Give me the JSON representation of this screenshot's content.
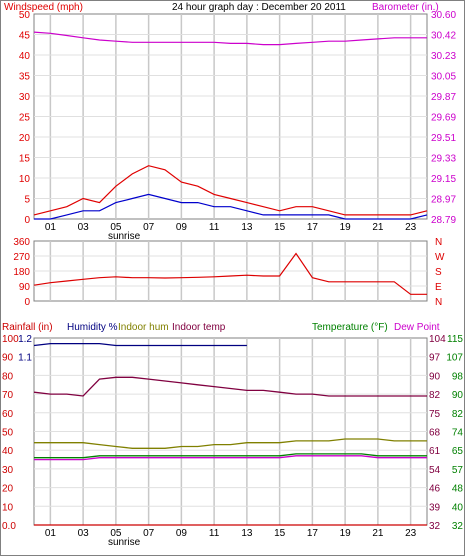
{
  "colors": {
    "wind_gust": "#e00000",
    "wind_avg": "#0000cc",
    "barometer": "#cc00cc",
    "direction": "#dd0000",
    "rain": "#cc0000",
    "humidity": "#000080",
    "indoor_hum": "#808000",
    "indoor_temp": "#800040",
    "temperature": "#008000",
    "dew_point": "#cc00cc",
    "grid": "#c8c8c8",
    "frame": "#808080"
  },
  "header": {
    "left_title": "Windspeed (mph)",
    "center_title": "24 hour graph day : December 20 2011",
    "right_title": "Barometer (in.)"
  },
  "hour_labels": [
    "01",
    "03",
    "05",
    "07",
    "09",
    "11",
    "13",
    "15",
    "17",
    "19",
    "21",
    "23"
  ],
  "sunrise_label": "sunrise",
  "chart_data": [
    {
      "type": "line",
      "title": "24 hour graph day : December 20 2011",
      "ylabel": "Windspeed (mph)",
      "y2label": "Barometer (in.)",
      "ylim": [
        0,
        50
      ],
      "y2lim": [
        28.79,
        30.6
      ],
      "y_ticks": [
        "0",
        "5",
        "10",
        "15",
        "20",
        "25",
        "30",
        "35",
        "40",
        "45",
        "50"
      ],
      "y2_ticks": [
        "28.79",
        "28.97",
        "29.15",
        "29.33",
        "29.51",
        "29.69",
        "29.87",
        "30.05",
        "30.23",
        "30.42",
        "30.60"
      ],
      "x": [
        0,
        1,
        2,
        3,
        4,
        5,
        6,
        7,
        8,
        9,
        10,
        11,
        12,
        13,
        14,
        15,
        16,
        17,
        18,
        19,
        20,
        21,
        22,
        23,
        24
      ],
      "series": [
        {
          "name": "Windspeed (mph)",
          "key": "wind_gust",
          "values": [
            1,
            2,
            3,
            5,
            4,
            8,
            11,
            13,
            12,
            9,
            8,
            6,
            5,
            4,
            3,
            2,
            3,
            3,
            2,
            1,
            1,
            1,
            1,
            1,
            2
          ]
        },
        {
          "name": "",
          "key": "wind_avg",
          "values": [
            0,
            0,
            1,
            2,
            2,
            4,
            5,
            6,
            5,
            4,
            4,
            3,
            3,
            2,
            1,
            1,
            1,
            1,
            1,
            0,
            0,
            0,
            0,
            0,
            1
          ]
        },
        {
          "name": "Barometer (in.)",
          "key": "barometer",
          "axis": "right",
          "values": [
            30.44,
            30.43,
            30.41,
            30.39,
            30.37,
            30.36,
            30.35,
            30.35,
            30.35,
            30.35,
            30.35,
            30.35,
            30.34,
            30.34,
            30.33,
            30.33,
            30.34,
            30.35,
            30.36,
            30.36,
            30.37,
            30.38,
            30.39,
            30.39,
            30.39
          ]
        }
      ]
    },
    {
      "type": "line",
      "ylim": [
        0,
        360
      ],
      "y_ticks": [
        "0",
        "90",
        "180",
        "270",
        "360"
      ],
      "y2_ticks": [
        "N",
        "E",
        "S",
        "W",
        "N"
      ],
      "x": [
        0,
        1,
        2,
        3,
        4,
        5,
        6,
        7,
        8,
        9,
        10,
        11,
        12,
        13,
        14,
        15,
        16,
        17,
        18,
        19,
        20,
        21,
        22,
        23,
        24
      ],
      "series": [
        {
          "name": "",
          "key": "direction",
          "values": [
            95,
            110,
            120,
            130,
            140,
            145,
            140,
            140,
            138,
            140,
            142,
            145,
            150,
            155,
            150,
            150,
            285,
            140,
            115,
            115,
            115,
            115,
            115,
            40,
            40
          ]
        }
      ]
    },
    {
      "type": "line",
      "ylim": [
        0,
        100
      ],
      "y_ticks": [
        "0.0",
        "10",
        "20",
        "30",
        "40",
        "50",
        "60",
        "70",
        "80",
        "90",
        "100"
      ],
      "ylabel": "Rainfall (in)",
      "y2_ticks_outer": [
        "32",
        "40",
        "48",
        "57",
        "65",
        "74",
        "82",
        "90",
        "98",
        "107",
        "115"
      ],
      "y2_ticks_inner": [
        "32",
        "39",
        "46",
        "54",
        "61",
        "68",
        "75",
        "82",
        "90",
        "97",
        "104"
      ],
      "y2label": "Temperature (°F)",
      "left_inner_ticks": [
        "1.1",
        "1.2"
      ],
      "legend": [
        "Rainfall (in)",
        "Humidity %",
        "Indoor hum",
        "Indoor temp",
        "Temperature (°F)",
        "Dew Point"
      ],
      "x": [
        0,
        1,
        2,
        3,
        4,
        5,
        6,
        7,
        8,
        9,
        10,
        11,
        12,
        13,
        14,
        15,
        16,
        17,
        18,
        19,
        20,
        21,
        22,
        23,
        24
      ],
      "series": [
        {
          "name": "Humidity %",
          "key": "humidity",
          "values": [
            96,
            97,
            97,
            97,
            97,
            96,
            96,
            96,
            96,
            96,
            96,
            96,
            96,
            96,
            null,
            null,
            null,
            null,
            null,
            null,
            null,
            null,
            null,
            null,
            null
          ]
        },
        {
          "name": "Indoor hum",
          "key": "indoor_hum",
          "values": [
            44,
            44,
            44,
            44,
            43,
            42,
            41,
            41,
            41,
            42,
            42,
            43,
            43,
            44,
            44,
            44,
            45,
            45,
            45,
            46,
            46,
            46,
            45,
            45,
            45
          ]
        },
        {
          "name": "Indoor temp",
          "key": "indoor_temp",
          "values": [
            71,
            70,
            70,
            69,
            78,
            79,
            79,
            78,
            77,
            76,
            75,
            74,
            73,
            72,
            72,
            71,
            70,
            70,
            69,
            69,
            69,
            69,
            69,
            69,
            69
          ]
        },
        {
          "name": "Temperature (°F)",
          "key": "temperature",
          "values": [
            36,
            36,
            36,
            36,
            37,
            37,
            37,
            37,
            37,
            37,
            37,
            37,
            37,
            37,
            37,
            37,
            38,
            38,
            38,
            38,
            38,
            37,
            37,
            37,
            37
          ]
        },
        {
          "name": "Dew Point",
          "key": "dew_point",
          "values": [
            35,
            35,
            35,
            35,
            36,
            36,
            36,
            36,
            36,
            36,
            36,
            36,
            36,
            36,
            36,
            36,
            37,
            37,
            37,
            37,
            37,
            36,
            36,
            36,
            36
          ]
        },
        {
          "name": "Rainfall (in)",
          "key": "rain",
          "values": [
            0,
            0,
            0,
            0,
            0,
            0,
            0,
            0,
            0,
            0,
            0,
            0,
            0,
            0,
            0,
            0,
            0,
            0,
            0,
            0,
            0,
            0,
            0,
            0,
            0
          ]
        }
      ]
    }
  ],
  "panel3_header": {
    "rainfall": "Rainfall (in)",
    "humidity": "Humidity %",
    "indoor_hum": "Indoor hum",
    "indoor_temp": "Indoor temp",
    "temperature": "Temperature (°F)",
    "dew_point": "Dew Point"
  }
}
